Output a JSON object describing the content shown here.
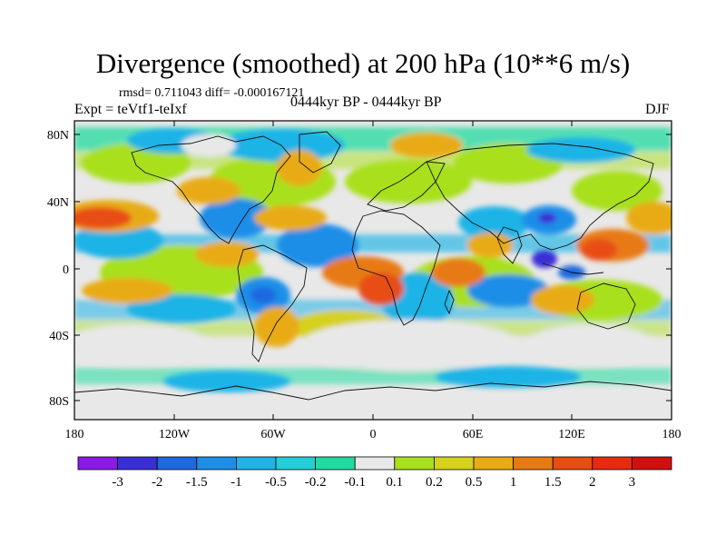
{
  "title": "Divergence (smoothed) at 200 hPa (10**6 m/s)",
  "stats": "rmsd= 0.711043 diff= -0.000167121",
  "experiment": "Expt = teVtf1-teIxf",
  "period": "0444kyr BP - 0444kyr BP",
  "season": "DJF",
  "axes": {
    "lat_ticks": [
      "80N",
      "40N",
      "0",
      "40S",
      "80S"
    ],
    "lon_ticks": [
      "180",
      "120W",
      "60W",
      "0",
      "60E",
      "120E",
      "180"
    ]
  },
  "colorbar": {
    "labels": [
      "-3",
      "-2",
      "-1.5",
      "-1",
      "-0.5",
      "-0.2",
      "-0.1",
      "0.1",
      "0.2",
      "0.5",
      "1",
      "1.5",
      "2",
      "3"
    ],
    "colors": [
      "#8a1ae8",
      "#3a2fd6",
      "#1f68e0",
      "#1c8ee8",
      "#1fb3e6",
      "#23cfd6",
      "#1fdba0",
      "#e8e8e8",
      "#a8e01c",
      "#d6d11a",
      "#e8ab14",
      "#e87a12",
      "#e84d12",
      "#e82a10",
      "#d01010"
    ]
  },
  "colors": {
    "neutral": "#e8e8e8",
    "coastline": "#111111"
  }
}
